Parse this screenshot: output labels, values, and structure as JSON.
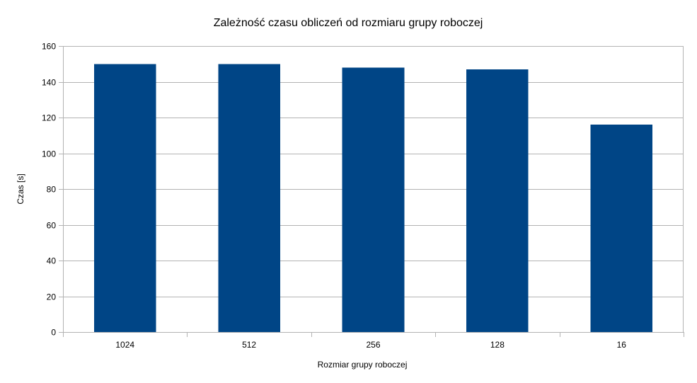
{
  "chart_data": {
    "type": "bar",
    "title": "Zależność czasu obliczeń od rozmiaru grupy roboczej",
    "xlabel": "Rozmiar grupy roboczej",
    "ylabel": "Czas [s]",
    "categories": [
      "1024",
      "512",
      "256",
      "128",
      "16"
    ],
    "values": [
      150,
      150,
      148,
      147,
      116
    ],
    "ylim": [
      0,
      160
    ],
    "yticks": [
      0,
      20,
      40,
      60,
      80,
      100,
      120,
      140,
      160
    ],
    "grid": true,
    "legend": "none",
    "bar_color": "#004586"
  }
}
